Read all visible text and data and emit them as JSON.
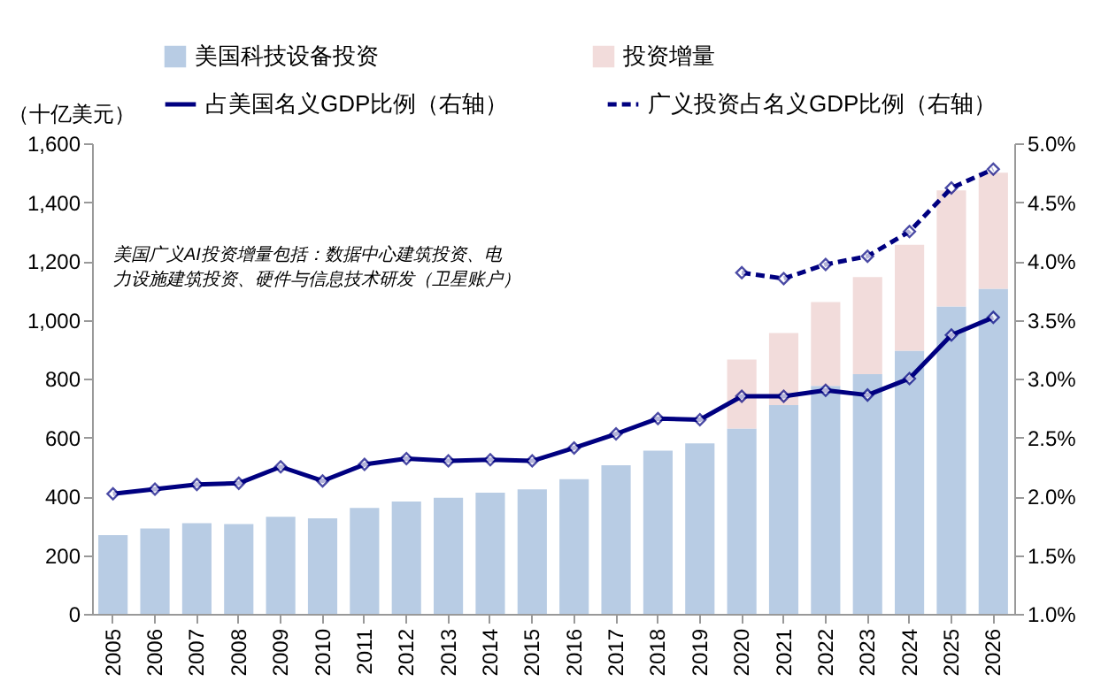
{
  "chart_data": {
    "type": "bar",
    "ylabel": "（十亿美元）",
    "categories": [
      "2005",
      "2006",
      "2007",
      "2008",
      "2009",
      "2010",
      "2011",
      "2012",
      "2013",
      "2014",
      "2015",
      "2016",
      "2017",
      "2018",
      "2019",
      "2020",
      "2021",
      "2022",
      "2023",
      "2024",
      "2025",
      "2026"
    ],
    "series": [
      {
        "name": "美国科技设备投资",
        "color": "#b8cce4",
        "values": [
          268,
          290,
          308,
          305,
          330,
          325,
          360,
          382,
          395,
          412,
          423,
          458,
          505,
          555,
          580,
          630,
          710,
          775,
          815,
          895,
          1045,
          1105
        ]
      },
      {
        "name": "投资增量",
        "color": "#f2dcdb",
        "values": [
          null,
          null,
          null,
          null,
          null,
          null,
          null,
          null,
          null,
          null,
          null,
          null,
          null,
          null,
          null,
          235,
          245,
          285,
          330,
          360,
          395,
          395
        ]
      },
      {
        "name": "占美国名义GDP比例（右轴）",
        "type": "line",
        "axis": "y2",
        "line_style": "solid",
        "color": "#000080",
        "values": [
          2.02,
          2.06,
          2.1,
          2.11,
          2.25,
          2.13,
          2.27,
          2.32,
          2.3,
          2.31,
          2.3,
          2.41,
          2.53,
          2.66,
          2.65,
          2.85,
          2.85,
          2.9,
          2.86,
          3.0,
          3.37,
          3.52
        ]
      },
      {
        "name": "广义投资占名义GDP比例（右轴）",
        "type": "line",
        "axis": "y2",
        "line_style": "dashed",
        "color": "#000080",
        "values": [
          null,
          null,
          null,
          null,
          null,
          null,
          null,
          null,
          null,
          null,
          null,
          null,
          null,
          null,
          null,
          3.9,
          3.85,
          3.97,
          4.04,
          4.25,
          4.62,
          4.78
        ]
      }
    ],
    "stacked": true,
    "marker": "diamond",
    "legend": "top",
    "grid": false,
    "ylim": [
      0,
      1600
    ],
    "yticks": [
      0,
      200,
      400,
      600,
      800,
      {
        "value": 1000,
        "label": "1,000"
      },
      {
        "value": 1200,
        "label": "1,200"
      },
      {
        "value": 1400,
        "label": "1,400"
      },
      {
        "value": 1600,
        "label": "1,600"
      }
    ],
    "y2lim": [
      1.0,
      5.0
    ],
    "y2ticks": [
      {
        "value": 1.0,
        "label": "1.0%"
      },
      {
        "value": 1.5,
        "label": "1.5%"
      },
      {
        "value": 2.0,
        "label": "2.0%"
      },
      {
        "value": 2.5,
        "label": "2.5%"
      },
      {
        "value": 3.0,
        "label": "3.0%"
      },
      {
        "value": 3.5,
        "label": "3.5%"
      },
      {
        "value": 4.0,
        "label": "4.0%"
      },
      {
        "value": 4.5,
        "label": "4.5%"
      },
      {
        "value": 5.0,
        "label": "5.0%"
      }
    ],
    "annotations": [
      "美国广义AI投资增量包括：数据中心建筑投资、电力设施建筑投资、硬件与信息技术研发（卫星账户）"
    ]
  }
}
